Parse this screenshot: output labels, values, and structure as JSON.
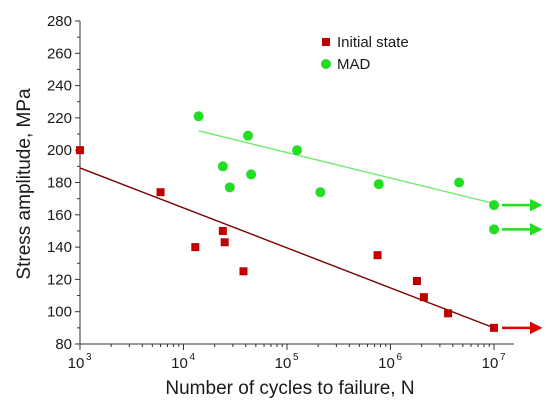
{
  "chart_data": {
    "type": "scatter",
    "xlabel": "Number of cycles to failure, N",
    "ylabel": "Stress amplitude, MPa",
    "x_scale": "log",
    "xlim": [
      1000,
      10000000
    ],
    "ylim": [
      80,
      280
    ],
    "x_ticks": [
      {
        "value": 1000,
        "base": "10",
        "exp": "3"
      },
      {
        "value": 10000,
        "base": "10",
        "exp": "4"
      },
      {
        "value": 100000,
        "base": "10",
        "exp": "5"
      },
      {
        "value": 1000000,
        "base": "10",
        "exp": "6"
      },
      {
        "value": 10000000,
        "base": "10",
        "exp": "7"
      }
    ],
    "y_ticks": [
      80,
      100,
      120,
      140,
      160,
      180,
      200,
      220,
      240,
      260,
      280
    ],
    "y_tick_labels": [
      "80",
      "100",
      "120",
      "140",
      "160",
      "180",
      "200",
      "220",
      "240",
      "260",
      "280"
    ],
    "grid": false,
    "legend_position": "top-right",
    "series": [
      {
        "name": "Initial state",
        "color": "#c00000",
        "marker": "square",
        "points": [
          {
            "x": 1000,
            "y": 200
          },
          {
            "x": 6000,
            "y": 174
          },
          {
            "x": 13000,
            "y": 140
          },
          {
            "x": 24000,
            "y": 150
          },
          {
            "x": 25000,
            "y": 143
          },
          {
            "x": 38000,
            "y": 125
          },
          {
            "x": 750000,
            "y": 135
          },
          {
            "x": 1800000,
            "y": 119
          },
          {
            "x": 2100000,
            "y": 109
          },
          {
            "x": 3600000,
            "y": 99
          },
          {
            "x": 10000000,
            "y": 90
          }
        ],
        "trend": [
          {
            "x": 1000,
            "y": 189
          },
          {
            "x": 10000000,
            "y": 90
          }
        ],
        "trend_color": "#7a0000",
        "runout_arrows": [
          {
            "x": 10000000,
            "y": 90
          }
        ]
      },
      {
        "name": "MAD",
        "color": "#22dd22",
        "marker": "circle",
        "points": [
          {
            "x": 14000,
            "y": 221
          },
          {
            "x": 24000,
            "y": 190
          },
          {
            "x": 28000,
            "y": 177
          },
          {
            "x": 42000,
            "y": 209
          },
          {
            "x": 45000,
            "y": 185
          },
          {
            "x": 125000,
            "y": 200
          },
          {
            "x": 210000,
            "y": 174
          },
          {
            "x": 770000,
            "y": 179
          },
          {
            "x": 4600000,
            "y": 180
          },
          {
            "x": 10000000,
            "y": 166
          },
          {
            "x": 10000000,
            "y": 151
          }
        ],
        "trend": [
          {
            "x": 14000,
            "y": 212
          },
          {
            "x": 10000000,
            "y": 167
          }
        ],
        "trend_color": "#66ee66",
        "runout_arrows": [
          {
            "x": 10000000,
            "y": 166
          },
          {
            "x": 10000000,
            "y": 151
          }
        ]
      }
    ]
  }
}
